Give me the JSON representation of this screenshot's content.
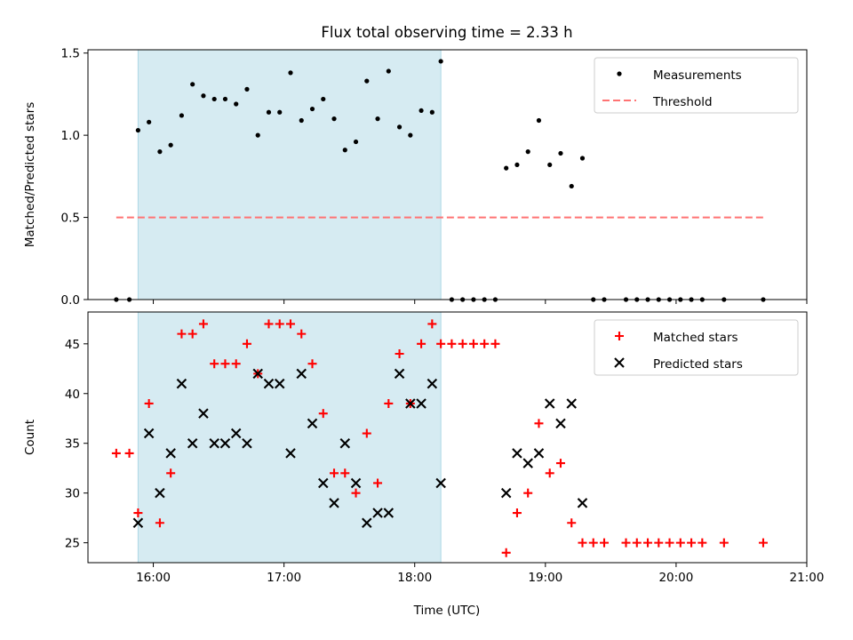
{
  "chart_data": {
    "type": "scatter",
    "title": "Flux total observing time = 2.33 h",
    "xlabel": "Time (UTC)",
    "x_ticks": [
      "16:00",
      "17:00",
      "18:00",
      "19:00",
      "20:00",
      "21:00"
    ],
    "xlim": [
      "15:30",
      "21:00"
    ],
    "shaded_interval": {
      "start": "15:53",
      "end": "18:12",
      "color": "#add8e6"
    },
    "panels": [
      {
        "ylabel": "Matched/Predicted stars",
        "ylim": [
          0,
          1.52
        ],
        "yticks": [
          "0.0",
          "0.5",
          "1.0",
          "1.5"
        ],
        "legend_position": "top-right",
        "series": [
          {
            "name": "Measurements",
            "marker": "dot",
            "color": "#000000",
            "points": [
              [
                "15:43",
                0
              ],
              [
                "15:49",
                0
              ],
              [
                "15:53",
                1.03
              ],
              [
                "15:58",
                1.08
              ],
              [
                "16:03",
                0.9
              ],
              [
                "16:08",
                0.94
              ],
              [
                "16:13",
                1.12
              ],
              [
                "16:18",
                1.31
              ],
              [
                "16:23",
                1.24
              ],
              [
                "16:28",
                1.22
              ],
              [
                "16:33",
                1.22
              ],
              [
                "16:38",
                1.19
              ],
              [
                "16:43",
                1.28
              ],
              [
                "16:48",
                1.0
              ],
              [
                "16:53",
                1.14
              ],
              [
                "16:58",
                1.14
              ],
              [
                "17:03",
                1.38
              ],
              [
                "17:08",
                1.09
              ],
              [
                "17:13",
                1.16
              ],
              [
                "17:18",
                1.22
              ],
              [
                "17:23",
                1.1
              ],
              [
                "17:28",
                0.91
              ],
              [
                "17:33",
                0.96
              ],
              [
                "17:38",
                1.33
              ],
              [
                "17:43",
                1.1
              ],
              [
                "17:48",
                1.39
              ],
              [
                "17:53",
                1.05
              ],
              [
                "17:58",
                1.0
              ],
              [
                "18:03",
                1.15
              ],
              [
                "18:08",
                1.14
              ],
              [
                "18:12",
                1.45
              ],
              [
                "18:17",
                0
              ],
              [
                "18:22",
                0
              ],
              [
                "18:27",
                0
              ],
              [
                "18:32",
                0
              ],
              [
                "18:37",
                0
              ],
              [
                "18:42",
                0.8
              ],
              [
                "18:47",
                0.82
              ],
              [
                "18:52",
                0.9
              ],
              [
                "18:57",
                1.09
              ],
              [
                "19:02",
                0.82
              ],
              [
                "19:07",
                0.89
              ],
              [
                "19:12",
                0.69
              ],
              [
                "19:17",
                0.86
              ],
              [
                "19:22",
                0
              ],
              [
                "19:27",
                0
              ],
              [
                "19:37",
                0
              ],
              [
                "19:42",
                0
              ],
              [
                "19:47",
                0
              ],
              [
                "19:52",
                0
              ],
              [
                "19:57",
                0
              ],
              [
                "20:02",
                0
              ],
              [
                "20:07",
                0
              ],
              [
                "20:12",
                0
              ],
              [
                "20:22",
                0
              ],
              [
                "20:40",
                0
              ]
            ]
          },
          {
            "name": "Threshold",
            "line_style": "dashed",
            "color": "#ff7373",
            "y": 0.5,
            "x_range": [
              "15:43",
              "20:40"
            ]
          }
        ]
      },
      {
        "ylabel": "Count",
        "ylim": [
          23,
          48.2
        ],
        "yticks": [
          "25",
          "30",
          "35",
          "40",
          "45"
        ],
        "legend_position": "top-right",
        "series": [
          {
            "name": "Matched stars",
            "marker": "plus",
            "color": "#ff0000",
            "points": [
              [
                "15:43",
                34
              ],
              [
                "15:49",
                34
              ],
              [
                "15:53",
                28
              ],
              [
                "15:58",
                39
              ],
              [
                "16:03",
                27
              ],
              [
                "16:08",
                32
              ],
              [
                "16:13",
                46
              ],
              [
                "16:18",
                46
              ],
              [
                "16:23",
                47
              ],
              [
                "16:28",
                43
              ],
              [
                "16:33",
                43
              ],
              [
                "16:38",
                43
              ],
              [
                "16:43",
                45
              ],
              [
                "16:48",
                42
              ],
              [
                "16:53",
                47
              ],
              [
                "16:58",
                47
              ],
              [
                "17:03",
                47
              ],
              [
                "17:08",
                46
              ],
              [
                "17:13",
                43
              ],
              [
                "17:18",
                38
              ],
              [
                "17:23",
                32
              ],
              [
                "17:28",
                32
              ],
              [
                "17:33",
                30
              ],
              [
                "17:38",
                36
              ],
              [
                "17:43",
                31
              ],
              [
                "17:48",
                39
              ],
              [
                "17:53",
                44
              ],
              [
                "17:58",
                39
              ],
              [
                "18:03",
                45
              ],
              [
                "18:08",
                47
              ],
              [
                "18:12",
                45
              ],
              [
                "18:17",
                45
              ],
              [
                "18:22",
                45
              ],
              [
                "18:27",
                45
              ],
              [
                "18:32",
                45
              ],
              [
                "18:37",
                45
              ],
              [
                "18:42",
                24
              ],
              [
                "18:47",
                28
              ],
              [
                "18:52",
                30
              ],
              [
                "18:57",
                37
              ],
              [
                "19:02",
                32
              ],
              [
                "19:07",
                33
              ],
              [
                "19:12",
                27
              ],
              [
                "19:17",
                25
              ],
              [
                "19:22",
                25
              ],
              [
                "19:27",
                25
              ],
              [
                "19:37",
                25
              ],
              [
                "19:42",
                25
              ],
              [
                "19:47",
                25
              ],
              [
                "19:52",
                25
              ],
              [
                "19:57",
                25
              ],
              [
                "20:02",
                25
              ],
              [
                "20:07",
                25
              ],
              [
                "20:12",
                25
              ],
              [
                "20:22",
                25
              ],
              [
                "20:40",
                25
              ]
            ]
          },
          {
            "name": "Predicted stars",
            "marker": "x",
            "color": "#000000",
            "points": [
              [
                "15:53",
                27
              ],
              [
                "15:58",
                36
              ],
              [
                "16:03",
                30
              ],
              [
                "16:08",
                34
              ],
              [
                "16:13",
                41
              ],
              [
                "16:18",
                35
              ],
              [
                "16:23",
                38
              ],
              [
                "16:28",
                35
              ],
              [
                "16:33",
                35
              ],
              [
                "16:38",
                36
              ],
              [
                "16:43",
                35
              ],
              [
                "16:48",
                42
              ],
              [
                "16:53",
                41
              ],
              [
                "16:58",
                41
              ],
              [
                "17:03",
                34
              ],
              [
                "17:08",
                42
              ],
              [
                "17:13",
                37
              ],
              [
                "17:18",
                31
              ],
              [
                "17:23",
                29
              ],
              [
                "17:28",
                35
              ],
              [
                "17:33",
                31
              ],
              [
                "17:38",
                27
              ],
              [
                "17:43",
                28
              ],
              [
                "17:48",
                28
              ],
              [
                "17:53",
                42
              ],
              [
                "17:58",
                39
              ],
              [
                "18:03",
                39
              ],
              [
                "18:08",
                41
              ],
              [
                "18:12",
                31
              ],
              [
                "18:42",
                30
              ],
              [
                "18:47",
                34
              ],
              [
                "18:52",
                33
              ],
              [
                "18:57",
                34
              ],
              [
                "19:02",
                39
              ],
              [
                "19:07",
                37
              ],
              [
                "19:12",
                39
              ],
              [
                "19:17",
                29
              ]
            ]
          }
        ]
      }
    ]
  }
}
